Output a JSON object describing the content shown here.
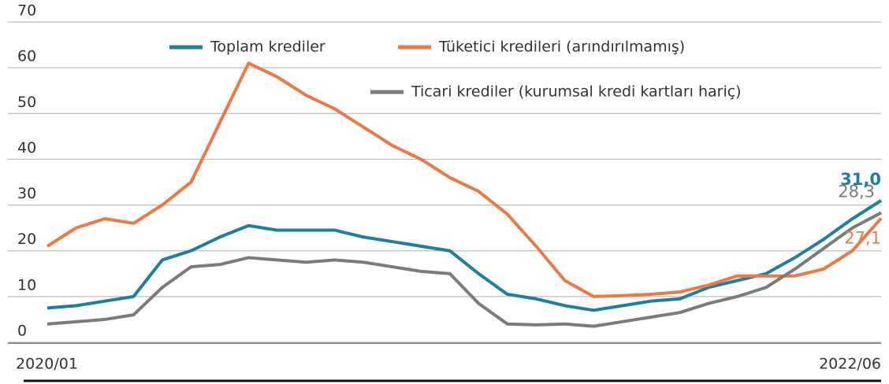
{
  "chart_data": {
    "type": "line",
    "categories": [
      "2020/01",
      null,
      null,
      null,
      null,
      null,
      null,
      null,
      null,
      null,
      null,
      null,
      null,
      null,
      null,
      null,
      null,
      null,
      null,
      null,
      null,
      null,
      null,
      null,
      null,
      null,
      null,
      null,
      null,
      "2022/06"
    ],
    "series": [
      {
        "name": "Toplam krediler",
        "color": "#1d7ea1",
        "values": [
          7.5,
          8,
          9,
          10,
          18,
          20,
          23,
          25.5,
          24.5,
          24.5,
          24.5,
          23,
          22,
          21,
          20,
          15,
          10.5,
          9.5,
          8,
          7,
          8,
          9,
          9.5,
          12,
          13.5,
          15,
          18.5,
          22.5,
          27,
          31
        ],
        "value_labels": [
          null,
          null,
          null,
          null,
          null,
          null,
          null,
          null,
          null,
          null,
          null,
          null,
          null,
          null,
          null,
          null,
          null,
          null,
          null,
          null,
          null,
          null,
          null,
          null,
          null,
          null,
          null,
          null,
          null,
          "31,0"
        ]
      },
      {
        "name": "Tüketici kredileri (arındırılmamış)",
        "color": "#ee7843",
        "values": [
          21,
          25,
          27,
          26,
          30,
          35,
          48,
          61,
          58,
          54,
          51,
          47,
          43,
          40,
          36,
          33,
          28,
          21,
          13.5,
          10,
          10.2,
          10.5,
          11,
          12.5,
          14.5,
          14.5,
          14.5,
          16,
          20,
          27.1
        ],
        "value_labels": [
          null,
          null,
          null,
          null,
          null,
          null,
          null,
          null,
          null,
          null,
          null,
          null,
          null,
          null,
          null,
          null,
          null,
          null,
          null,
          null,
          null,
          null,
          null,
          null,
          null,
          null,
          null,
          null,
          null,
          "27,1"
        ]
      },
      {
        "name": "Ticari krediler (kurumsal kredi kartları hariç)",
        "color": "#7b7b7b",
        "values": [
          4,
          4.5,
          5,
          6,
          12,
          16.5,
          17,
          18.5,
          18,
          17.5,
          18,
          17.5,
          16.5,
          15.5,
          15,
          8.5,
          4,
          3.8,
          4,
          3.5,
          4.5,
          5.5,
          6.5,
          8.5,
          10,
          12,
          16,
          20.5,
          25,
          28.3
        ],
        "value_labels": [
          null,
          null,
          null,
          null,
          null,
          null,
          null,
          null,
          null,
          null,
          null,
          null,
          null,
          null,
          null,
          null,
          null,
          null,
          null,
          null,
          null,
          null,
          null,
          null,
          null,
          null,
          null,
          null,
          null,
          "28,3"
        ]
      }
    ],
    "ylim": [
      0,
      70
    ],
    "yticks": [
      0,
      10,
      20,
      30,
      40,
      50,
      60,
      70
    ],
    "grid": true
  }
}
